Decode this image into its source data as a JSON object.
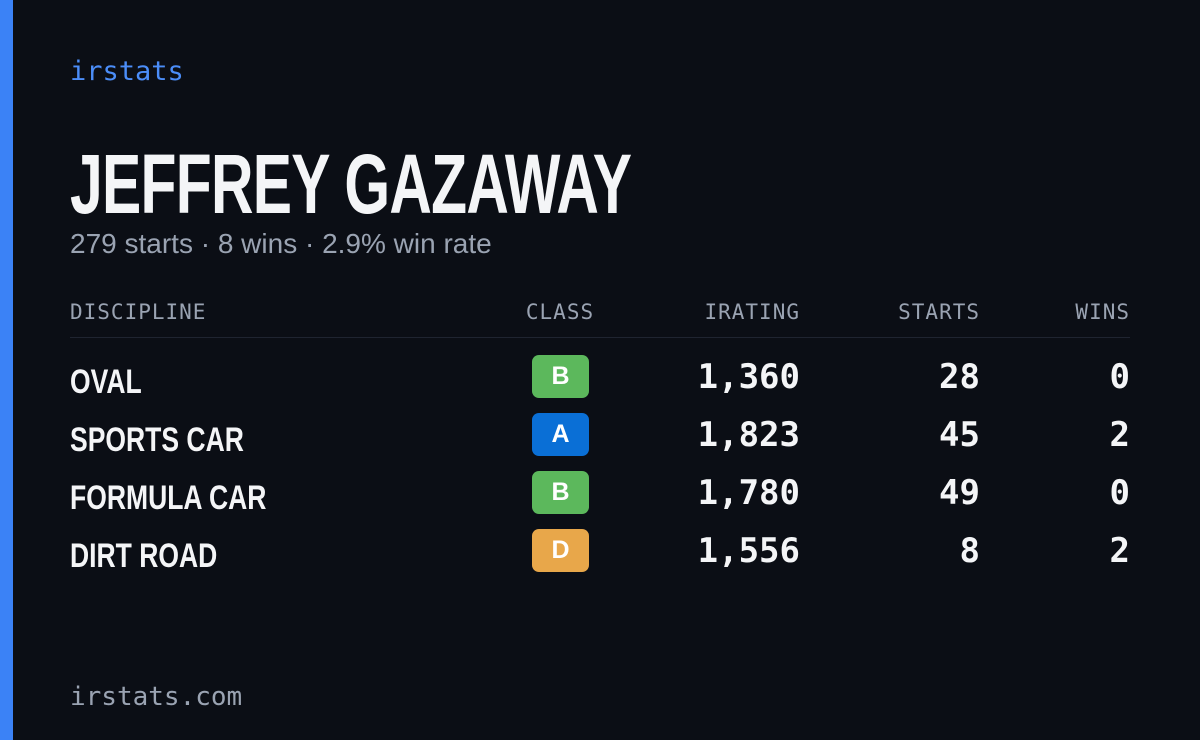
{
  "brand": "irstats",
  "driver": {
    "name": "JEFFREY GAZAWAY",
    "summary": "279 starts · 8 wins · 2.9% win rate"
  },
  "table": {
    "headers": [
      "DISCIPLINE",
      "CLASS",
      "IRATING",
      "STARTS",
      "WINS"
    ],
    "rows": [
      {
        "discipline": "OVAL",
        "class": "B",
        "class_color": "#5cb85c",
        "irating": "1,360",
        "starts": "28",
        "wins": "0"
      },
      {
        "discipline": "SPORTS CAR",
        "class": "A",
        "class_color": "#0a6fd6",
        "irating": "1,823",
        "starts": "45",
        "wins": "2"
      },
      {
        "discipline": "FORMULA CAR",
        "class": "B",
        "class_color": "#5cb85c",
        "irating": "1,780",
        "starts": "49",
        "wins": "0"
      },
      {
        "discipline": "DIRT ROAD",
        "class": "D",
        "class_color": "#e8a74a",
        "irating": "1,556",
        "starts": "8",
        "wins": "2"
      }
    ]
  },
  "footer": "irstats.com"
}
